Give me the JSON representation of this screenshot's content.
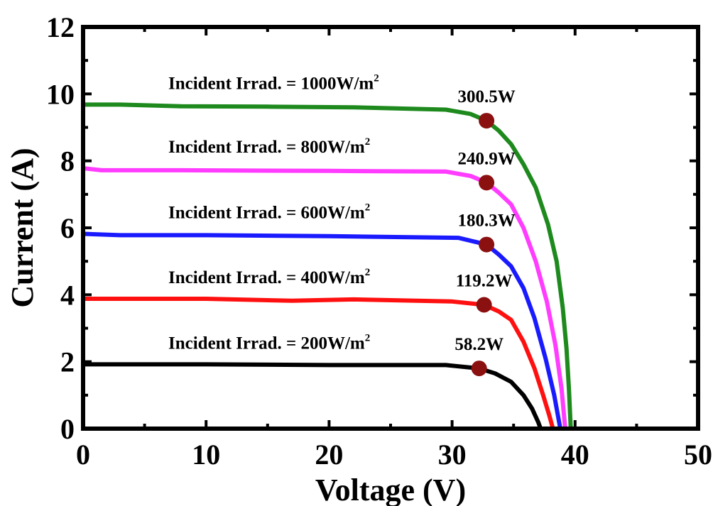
{
  "chart_data": {
    "type": "line",
    "xlabel": "Voltage (V)",
    "ylabel": "Current (A)",
    "xlim": [
      0,
      50
    ],
    "ylim": [
      0,
      12
    ],
    "xticks": [
      "0",
      "10",
      "20",
      "30",
      "40",
      "50"
    ],
    "yticks": [
      "0",
      "2",
      "4",
      "6",
      "8",
      "10",
      "12"
    ],
    "grid": false,
    "series": [
      {
        "name": "Incident Irrad. = 1000W/m²",
        "label_main": "Incident Irrad. = 1000W/m",
        "label_sup": "2",
        "color": "#1e8a1e",
        "mpp_label": "300.5W",
        "mpp": [
          32.8,
          9.2
        ],
        "points": [
          [
            0,
            9.68
          ],
          [
            3,
            9.68
          ],
          [
            8,
            9.63
          ],
          [
            15,
            9.62
          ],
          [
            22,
            9.6
          ],
          [
            29.5,
            9.53
          ],
          [
            31.5,
            9.4
          ],
          [
            32.8,
            9.2
          ],
          [
            33.8,
            8.9
          ],
          [
            34.8,
            8.5
          ],
          [
            35.8,
            7.9
          ],
          [
            36.8,
            7.2
          ],
          [
            37.8,
            6.1
          ],
          [
            38.5,
            5.0
          ],
          [
            39.0,
            3.6
          ],
          [
            39.3,
            2.4
          ],
          [
            39.5,
            1.2
          ],
          [
            39.65,
            0
          ]
        ]
      },
      {
        "name": "Incident Irrad. = 800W/m²",
        "label_main": "Incident Irrad. = 800W/m",
        "label_sup": "2",
        "color": "#ff3cff",
        "mpp_label": "240.9W",
        "mpp": [
          32.8,
          7.35
        ],
        "points": [
          [
            0,
            7.78
          ],
          [
            1.5,
            7.72
          ],
          [
            8,
            7.72
          ],
          [
            20,
            7.7
          ],
          [
            29.5,
            7.68
          ],
          [
            31.5,
            7.55
          ],
          [
            32.8,
            7.35
          ],
          [
            33.8,
            7.05
          ],
          [
            34.8,
            6.7
          ],
          [
            35.8,
            6.0
          ],
          [
            36.8,
            5.0
          ],
          [
            37.7,
            3.8
          ],
          [
            38.4,
            2.5
          ],
          [
            38.9,
            1.2
          ],
          [
            39.2,
            0
          ]
        ]
      },
      {
        "name": "Incident Irrad. = 600W/m²",
        "label_main": "Incident Irrad. = 600W/m",
        "label_sup": "2",
        "color": "#1a1aff",
        "mpp_label": "180.3W",
        "mpp": [
          32.8,
          5.5
        ],
        "points": [
          [
            0,
            5.82
          ],
          [
            3,
            5.78
          ],
          [
            10,
            5.78
          ],
          [
            20,
            5.75
          ],
          [
            30.5,
            5.7
          ],
          [
            32.8,
            5.5
          ],
          [
            33.8,
            5.2
          ],
          [
            34.8,
            4.85
          ],
          [
            35.8,
            4.2
          ],
          [
            36.7,
            3.3
          ],
          [
            37.6,
            2.1
          ],
          [
            38.3,
            1.0
          ],
          [
            38.8,
            0
          ]
        ]
      },
      {
        "name": "Incident Irrad. = 400W/m²",
        "label_main": "Incident Irrad. = 400W/m",
        "label_sup": "2",
        "color": "#ff1010",
        "mpp_label": "119.2W",
        "mpp": [
          32.6,
          3.7
        ],
        "points": [
          [
            0,
            3.88
          ],
          [
            10,
            3.88
          ],
          [
            17,
            3.82
          ],
          [
            22,
            3.86
          ],
          [
            30,
            3.8
          ],
          [
            32.6,
            3.7
          ],
          [
            33.8,
            3.5
          ],
          [
            34.8,
            3.25
          ],
          [
            35.8,
            2.6
          ],
          [
            36.7,
            1.8
          ],
          [
            37.4,
            1.0
          ],
          [
            37.9,
            0.4
          ],
          [
            38.2,
            0
          ]
        ]
      },
      {
        "name": "Incident Irrad. = 200W/m²",
        "label_main": "Incident Irrad. = 200W/m",
        "label_sup": "2",
        "color": "#000000",
        "mpp_label": "58.2W",
        "mpp": [
          32.2,
          1.8
        ],
        "points": [
          [
            0,
            1.92
          ],
          [
            10,
            1.92
          ],
          [
            20,
            1.9
          ],
          [
            29.5,
            1.9
          ],
          [
            32.2,
            1.8
          ],
          [
            33.5,
            1.65
          ],
          [
            34.8,
            1.4
          ],
          [
            35.8,
            1.0
          ],
          [
            36.5,
            0.6
          ],
          [
            37.0,
            0.2
          ],
          [
            37.2,
            0
          ]
        ]
      }
    ]
  }
}
